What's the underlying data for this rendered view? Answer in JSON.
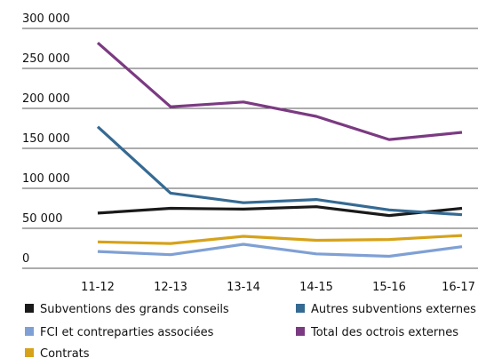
{
  "chart_data": {
    "type": "line",
    "categories": [
      "11-12",
      "12-13",
      "13-14",
      "14-15",
      "15-16",
      "16-17"
    ],
    "series": [
      {
        "name": "Subventions des grands conseils",
        "color": "#1a1a1a",
        "values": [
          69000,
          75000,
          74000,
          77000,
          66000,
          75000
        ]
      },
      {
        "name": "Autres subventions externes",
        "color": "#356a93",
        "values": [
          177000,
          94000,
          82000,
          86000,
          73000,
          67000
        ]
      },
      {
        "name": "FCI et contreparties associées",
        "color": "#7fa0d4",
        "values": [
          21000,
          17000,
          30000,
          18000,
          15000,
          27000
        ]
      },
      {
        "name": "Total des octrois externes",
        "color": "#7b3a82",
        "values": [
          282000,
          202000,
          208000,
          190000,
          161000,
          170000
        ]
      },
      {
        "name": "Contrats",
        "color": "#d6a21a",
        "values": [
          33000,
          31000,
          40000,
          35000,
          36000,
          41000
        ]
      }
    ],
    "ylim": [
      0,
      300000
    ],
    "yticks": [
      {
        "value": 0,
        "label": "0"
      },
      {
        "value": 50000,
        "label": "50 000"
      },
      {
        "value": 100000,
        "label": "100 000"
      },
      {
        "value": 150000,
        "label": "150 000"
      },
      {
        "value": 200000,
        "label": "200 000"
      },
      {
        "value": 250000,
        "label": "250 000"
      },
      {
        "value": 300000,
        "label": "300 000"
      }
    ],
    "grid": true,
    "legend": "bottom"
  }
}
